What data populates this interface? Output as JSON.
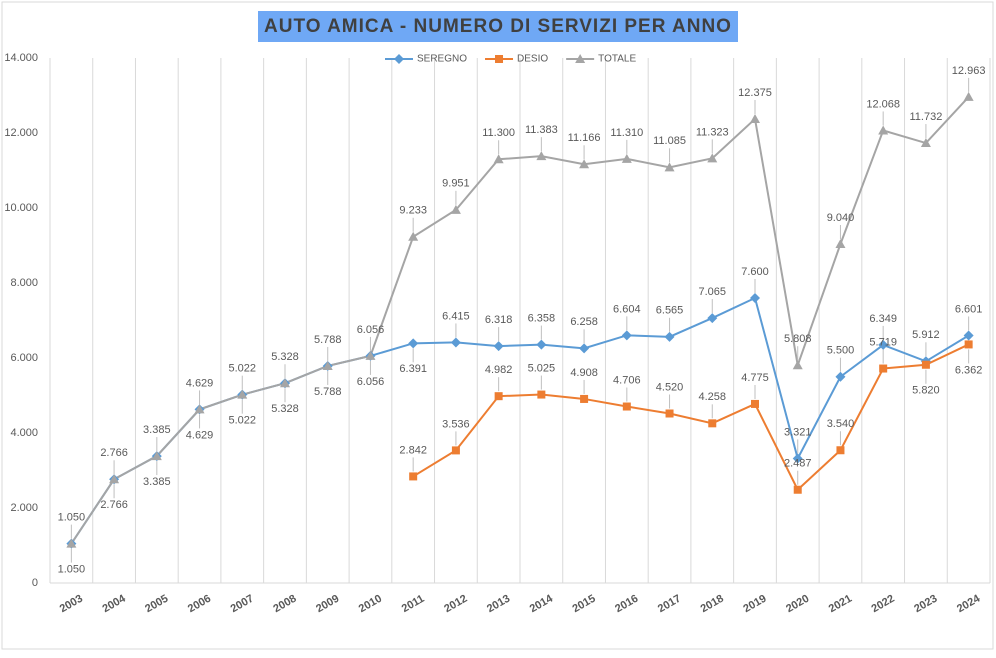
{
  "chart_data": {
    "type": "line",
    "title": "AUTO AMICA - NUMERO DI SERVIZI PER ANNO",
    "categories": [
      "2003",
      "2004",
      "2005",
      "2006",
      "2007",
      "2008",
      "2009",
      "2010",
      "2011",
      "2012",
      "2013",
      "2014",
      "2015",
      "2016",
      "2017",
      "2018",
      "2019",
      "2020",
      "2021",
      "2022",
      "2023",
      "2024"
    ],
    "series": [
      {
        "name": "SEREGNO",
        "color": "#5b9bd5",
        "marker": "diamond",
        "values": [
          1050,
          2766,
          3385,
          4629,
          5022,
          5328,
          5788,
          6056,
          6391,
          6415,
          6318,
          6358,
          6258,
          6604,
          6565,
          7065,
          7600,
          3321,
          5500,
          6349,
          5912,
          6601
        ],
        "value_labels": [
          "1.050",
          "2.766",
          "3.385",
          "4.629",
          "5.022",
          "5.328",
          "5.788",
          "6.056",
          "6.391",
          "6.415",
          "6.318",
          "6.358",
          "6.258",
          "6.604",
          "6.565",
          "7.065",
          "7.600",
          "3.321",
          "5.500",
          "6.349",
          "5.912",
          "6.601"
        ]
      },
      {
        "name": "DESIO",
        "color": "#ed7d31",
        "marker": "square",
        "values": [
          null,
          null,
          null,
          null,
          null,
          null,
          null,
          null,
          2842,
          3536,
          4982,
          5025,
          4908,
          4706,
          4520,
          4258,
          4775,
          2487,
          3540,
          5719,
          5820,
          6362
        ],
        "value_labels": [
          null,
          null,
          null,
          null,
          null,
          null,
          null,
          null,
          "2.842",
          "3.536",
          "4.982",
          "5.025",
          "4.908",
          "4.706",
          "4.520",
          "4.258",
          "4.775",
          "2.487",
          "3.540",
          "5.719",
          "5.820",
          "6.362"
        ]
      },
      {
        "name": "TOTALE",
        "color": "#a5a5a5",
        "marker": "triangle",
        "values": [
          1050,
          2766,
          3385,
          4629,
          5022,
          5328,
          5788,
          6056,
          9233,
          9951,
          11300,
          11383,
          11166,
          11310,
          11085,
          11323,
          12375,
          5808,
          9040,
          12068,
          11732,
          12963
        ],
        "value_labels": [
          "1.050",
          "2.766",
          "3.385",
          "4.629",
          "5.022",
          "5.328",
          "5.788",
          "6.056",
          "9.233",
          "9.951",
          "11.300",
          "11.383",
          "11.166",
          "11.310",
          "11.085",
          "11.323",
          "12.375",
          "5.808",
          "9.040",
          "12.068",
          "11.732",
          "12.963"
        ]
      }
    ],
    "ylim": [
      0,
      14000
    ],
    "yticks": [
      {
        "value": 0,
        "label": "0"
      },
      {
        "value": 2000,
        "label": "2.000"
      },
      {
        "value": 4000,
        "label": "4.000"
      },
      {
        "value": 6000,
        "label": "6.000"
      },
      {
        "value": 8000,
        "label": "8.000"
      },
      {
        "value": 10000,
        "label": "10.000"
      },
      {
        "value": 12000,
        "label": "12.000"
      },
      {
        "value": 14000,
        "label": "14.000"
      }
    ],
    "grid": "vertical",
    "legend": "top"
  }
}
